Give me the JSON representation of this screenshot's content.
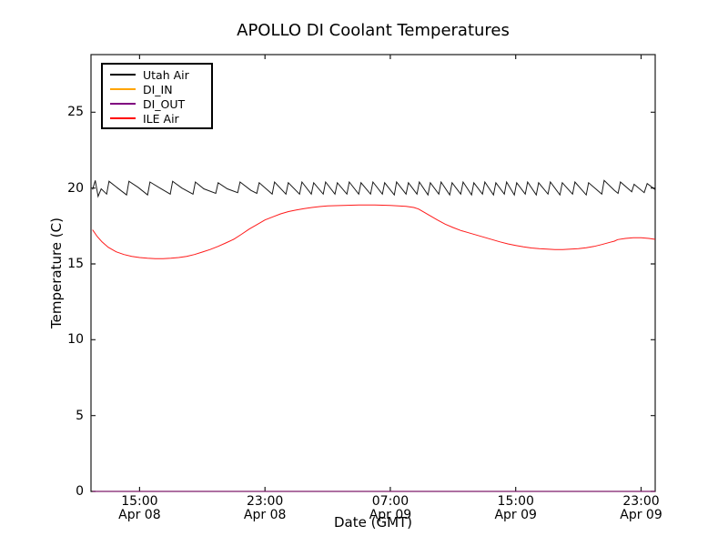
{
  "chart_data": {
    "type": "line",
    "title": "APOLLO DI Coolant Temperatures",
    "xlabel": "Date (GMT)",
    "ylabel": "Temperature (C)",
    "x_axis_unit": "hours from 12:00 Apr 08 GMT",
    "xlim": [
      -0.1,
      35.9
    ],
    "ylim": [
      0,
      28.8
    ],
    "grid": false,
    "legend_position": "upper left",
    "y_ticks": [
      0,
      5,
      10,
      15,
      20,
      25
    ],
    "x_ticks": [
      {
        "t": 3,
        "time": "15:00",
        "date": "Apr 08"
      },
      {
        "t": 11,
        "time": "23:00",
        "date": "Apr 08"
      },
      {
        "t": 19,
        "time": "07:00",
        "date": "Apr 09"
      },
      {
        "t": 27,
        "time": "15:00",
        "date": "Apr 09"
      },
      {
        "t": 35,
        "time": "23:00",
        "date": "Apr 09"
      }
    ],
    "series": [
      {
        "name": "Utah Air",
        "color": "#000000",
        "points": [
          [
            0,
            19.9
          ],
          [
            0.17,
            20.5
          ],
          [
            0.35,
            19.45
          ],
          [
            0.55,
            19.95
          ],
          [
            0.9,
            19.6
          ],
          [
            1.05,
            20.45
          ],
          [
            1.6,
            20.0
          ],
          [
            2.17,
            19.55
          ],
          [
            2.32,
            20.45
          ],
          [
            2.9,
            20.05
          ],
          [
            3.51,
            19.55
          ],
          [
            3.66,
            20.4
          ],
          [
            4.3,
            20.0
          ],
          [
            4.96,
            19.6
          ],
          [
            5.11,
            20.45
          ],
          [
            5.7,
            20.0
          ],
          [
            6.41,
            19.6
          ],
          [
            6.56,
            20.4
          ],
          [
            7.1,
            19.95
          ],
          [
            7.86,
            19.65
          ],
          [
            8.01,
            20.35
          ],
          [
            8.6,
            19.95
          ],
          [
            9.26,
            19.7
          ],
          [
            9.41,
            20.4
          ],
          [
            10.1,
            19.85
          ],
          [
            10.48,
            19.65
          ],
          [
            10.63,
            20.35
          ],
          [
            11.46,
            19.6
          ],
          [
            11.61,
            20.4
          ],
          [
            12.34,
            19.6
          ],
          [
            12.49,
            20.35
          ],
          [
            13.21,
            19.6
          ],
          [
            13.36,
            20.4
          ],
          [
            13.96,
            19.6
          ],
          [
            14.11,
            20.35
          ],
          [
            14.72,
            19.6
          ],
          [
            14.87,
            20.4
          ],
          [
            15.47,
            19.6
          ],
          [
            15.62,
            20.35
          ],
          [
            16.23,
            19.6
          ],
          [
            16.38,
            20.4
          ],
          [
            16.98,
            19.6
          ],
          [
            17.13,
            20.35
          ],
          [
            17.74,
            19.6
          ],
          [
            17.89,
            20.4
          ],
          [
            18.49,
            19.6
          ],
          [
            18.64,
            20.35
          ],
          [
            19.25,
            19.55
          ],
          [
            19.4,
            20.4
          ],
          [
            20.0,
            19.6
          ],
          [
            20.15,
            20.35
          ],
          [
            20.7,
            19.6
          ],
          [
            20.85,
            20.4
          ],
          [
            21.4,
            19.55
          ],
          [
            21.55,
            20.35
          ],
          [
            22.09,
            19.6
          ],
          [
            22.24,
            20.4
          ],
          [
            22.79,
            19.55
          ],
          [
            22.94,
            20.35
          ],
          [
            23.49,
            19.6
          ],
          [
            23.64,
            20.4
          ],
          [
            24.18,
            19.55
          ],
          [
            24.33,
            20.35
          ],
          [
            24.88,
            19.6
          ],
          [
            25.03,
            20.4
          ],
          [
            25.58,
            19.55
          ],
          [
            25.73,
            20.35
          ],
          [
            26.27,
            19.6
          ],
          [
            26.42,
            20.4
          ],
          [
            26.91,
            19.55
          ],
          [
            27.06,
            20.35
          ],
          [
            27.61,
            19.6
          ],
          [
            27.76,
            20.4
          ],
          [
            28.31,
            19.55
          ],
          [
            28.46,
            20.35
          ],
          [
            29.06,
            19.6
          ],
          [
            29.21,
            20.4
          ],
          [
            29.82,
            19.55
          ],
          [
            29.97,
            20.35
          ],
          [
            30.63,
            19.6
          ],
          [
            30.78,
            20.4
          ],
          [
            31.5,
            19.55
          ],
          [
            31.65,
            20.35
          ],
          [
            32.49,
            19.6
          ],
          [
            32.64,
            20.5
          ],
          [
            33.3,
            19.85
          ],
          [
            33.53,
            19.65
          ],
          [
            33.68,
            20.4
          ],
          [
            34.4,
            19.75
          ],
          [
            34.55,
            20.25
          ],
          [
            35.2,
            19.7
          ],
          [
            35.39,
            20.3
          ],
          [
            35.9,
            19.9
          ]
        ]
      },
      {
        "name": "DI_IN",
        "color": "#ffa500",
        "points": [
          [
            0,
            0
          ],
          [
            35.9,
            0
          ]
        ]
      },
      {
        "name": "DI_OUT",
        "color": "#800080",
        "points": [
          [
            0,
            0
          ],
          [
            35.9,
            0
          ]
        ]
      },
      {
        "name": "ILE Air",
        "color": "#ff0000",
        "points": [
          [
            0,
            17.25
          ],
          [
            0.3,
            16.8
          ],
          [
            0.6,
            16.45
          ],
          [
            1,
            16.1
          ],
          [
            1.5,
            15.8
          ],
          [
            2,
            15.62
          ],
          [
            2.5,
            15.5
          ],
          [
            3,
            15.42
          ],
          [
            3.5,
            15.37
          ],
          [
            4,
            15.35
          ],
          [
            4.5,
            15.35
          ],
          [
            5,
            15.37
          ],
          [
            5.5,
            15.42
          ],
          [
            6,
            15.5
          ],
          [
            6.5,
            15.62
          ],
          [
            7,
            15.78
          ],
          [
            7.5,
            15.95
          ],
          [
            8,
            16.15
          ],
          [
            8.5,
            16.38
          ],
          [
            9,
            16.62
          ],
          [
            9.5,
            16.95
          ],
          [
            10,
            17.3
          ],
          [
            10.5,
            17.6
          ],
          [
            11,
            17.9
          ],
          [
            11.5,
            18.1
          ],
          [
            12,
            18.3
          ],
          [
            12.5,
            18.45
          ],
          [
            13,
            18.55
          ],
          [
            13.5,
            18.65
          ],
          [
            14,
            18.72
          ],
          [
            14.5,
            18.78
          ],
          [
            15,
            18.82
          ],
          [
            15.5,
            18.84
          ],
          [
            16,
            18.86
          ],
          [
            16.5,
            18.87
          ],
          [
            17,
            18.88
          ],
          [
            17.5,
            18.88
          ],
          [
            18,
            18.88
          ],
          [
            18.5,
            18.87
          ],
          [
            19,
            18.85
          ],
          [
            19.5,
            18.83
          ],
          [
            20,
            18.8
          ],
          [
            20.5,
            18.72
          ],
          [
            20.8,
            18.62
          ],
          [
            21,
            18.5
          ],
          [
            21.5,
            18.2
          ],
          [
            22,
            17.9
          ],
          [
            22.5,
            17.62
          ],
          [
            23,
            17.4
          ],
          [
            23.5,
            17.2
          ],
          [
            24,
            17.05
          ],
          [
            24.5,
            16.9
          ],
          [
            25,
            16.75
          ],
          [
            25.5,
            16.6
          ],
          [
            26,
            16.45
          ],
          [
            26.5,
            16.32
          ],
          [
            27,
            16.22
          ],
          [
            27.5,
            16.12
          ],
          [
            28,
            16.05
          ],
          [
            28.5,
            16.0
          ],
          [
            29,
            15.97
          ],
          [
            29.5,
            15.95
          ],
          [
            30,
            15.95
          ],
          [
            30.5,
            15.97
          ],
          [
            31,
            16.0
          ],
          [
            31.5,
            16.07
          ],
          [
            32,
            16.15
          ],
          [
            32.5,
            16.28
          ],
          [
            33,
            16.42
          ],
          [
            33.3,
            16.5
          ],
          [
            33.5,
            16.6
          ],
          [
            34,
            16.68
          ],
          [
            34.5,
            16.72
          ],
          [
            35,
            16.72
          ],
          [
            35.5,
            16.68
          ],
          [
            35.9,
            16.62
          ]
        ]
      }
    ]
  }
}
